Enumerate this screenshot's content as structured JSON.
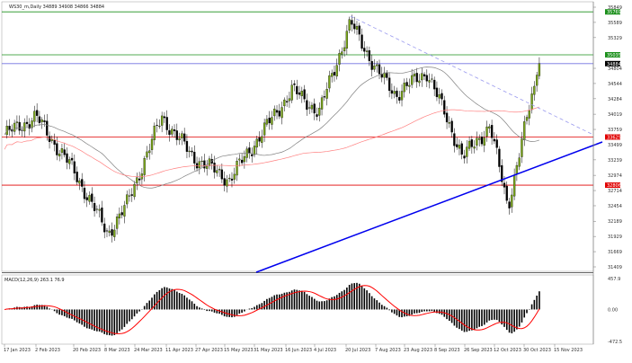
{
  "chart_data": [
    {
      "type": "candlestick",
      "title": "WS30_m,Daily  34889 34908 34866 34884",
      "symbol_header": "WS30_m,Daily",
      "ohlc_header": "34889 34908 34866 34884",
      "ylim": [
        31409,
        35849
      ],
      "y_ticks": [
        "35849",
        "35589",
        "35329",
        "34804",
        "34544",
        "34284",
        "34019",
        "33759",
        "33499",
        "33239",
        "32974",
        "32714",
        "32454",
        "32189",
        "31929",
        "31669",
        "31409"
      ],
      "x_ticks": [
        "17 Jan 2023",
        "2 Feb 2023",
        "20 Feb 2023",
        "8 Mar 2023",
        "24 Mar 2023",
        "11 Apr 2023",
        "27 Apr 2023",
        "15 May 2023",
        "31 May 2023",
        "16 Jun 2023",
        "4 Jul 2023",
        "20 Jul 2023",
        "7 Aug 2023",
        "23 Aug 2023",
        "8 Sep 2023",
        "26 Sep 2023",
        "12 Oct 2023",
        "30 Oct 2023",
        "15 Nov 2023"
      ],
      "approx_close_keypoints": [
        {
          "date": "17 Jan 2023",
          "close": 33668
        },
        {
          "date": "2 Feb 2023",
          "close": 33975
        },
        {
          "date": "20 Feb 2023",
          "close": 33053
        },
        {
          "date": "8 Mar 2023",
          "close": 31978
        },
        {
          "date": "24 Mar 2023",
          "close": 32438
        },
        {
          "date": "11 Apr 2023",
          "close": 33975
        },
        {
          "date": "27 Apr 2023",
          "close": 33284
        },
        {
          "date": "15 May 2023",
          "close": 32900
        },
        {
          "date": "31 May 2023",
          "close": 33668
        },
        {
          "date": "16 Jun 2023",
          "close": 34436
        },
        {
          "date": "4 Jul 2023",
          "close": 34052
        },
        {
          "date": "20 Jul 2023",
          "close": 35588
        },
        {
          "date": "7 Aug 2023",
          "close": 34743
        },
        {
          "date": "23 Aug 2023",
          "close": 34359
        },
        {
          "date": "8 Sep 2023",
          "close": 34743
        },
        {
          "date": "26 Sep 2023",
          "close": 33284
        },
        {
          "date": "12 Oct 2023",
          "close": 33821
        },
        {
          "date": "20 Oct 2023",
          "close": 32438
        },
        {
          "date": "30 Oct 2023",
          "close": 33514
        },
        {
          "date": "15 Nov 2023",
          "close": 34884
        }
      ],
      "levels": [
        {
          "label": "35769",
          "price": 35769,
          "color": "#1a8f1a"
        },
        {
          "label": "35035",
          "price": 35035,
          "color": "#1a8f1a"
        },
        {
          "label": "34884",
          "price": 34884,
          "color": "#000000",
          "line_color": "#7070e0"
        },
        {
          "label": "33629",
          "price": 33629,
          "color": "#e00000"
        },
        {
          "label": "32806",
          "price": 32806,
          "color": "#e00000"
        }
      ],
      "colors": {
        "up": "#7aa619",
        "down": "#000000",
        "ma_fast": "#808080",
        "ma_slow": "#ff8080",
        "trend_dashed": "#9999ee",
        "trend_solid": "#0000ee"
      }
    },
    {
      "type": "bar",
      "title": "MACD(12,26,9) 263.1 76.9",
      "ylim": [
        -472.5,
        457.9
      ],
      "y_ticks": [
        "457.9",
        "0.00",
        "-472.5"
      ],
      "colors": {
        "histogram": "#000000",
        "signal": "#ff0000"
      }
    }
  ]
}
